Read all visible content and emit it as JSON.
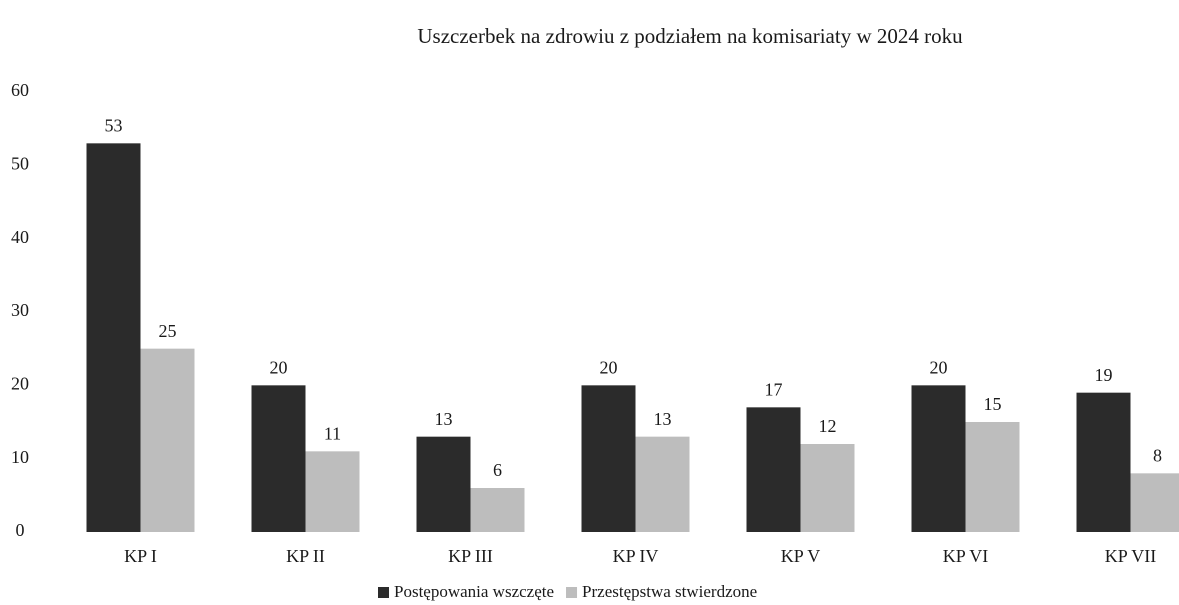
{
  "chart_data": {
    "type": "bar",
    "title": "Uszczerbek na zdrowiu z podziałem na komisariaty w 2024 roku",
    "categories": [
      "KP I",
      "KP II",
      "KP III",
      "KP IV",
      "KP V",
      "KP VI",
      "KP VII"
    ],
    "series": [
      {
        "name": "Postępowania wszczęte",
        "color": "#2b2b2b",
        "values": [
          53,
          20,
          13,
          20,
          17,
          20,
          19
        ]
      },
      {
        "name": "Przestępstwa stwierdzone",
        "color": "#bdbdbd",
        "values": [
          25,
          11,
          6,
          13,
          12,
          15,
          8
        ]
      }
    ],
    "ylim": [
      0,
      60
    ],
    "yticks": [
      0,
      10,
      20,
      30,
      40,
      50,
      60
    ],
    "grid": false,
    "legend": "bottom"
  }
}
